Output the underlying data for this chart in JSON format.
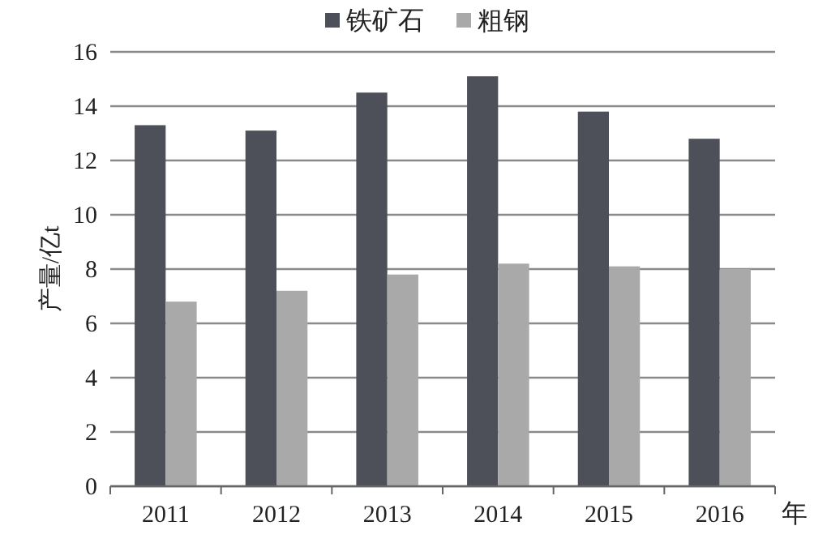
{
  "chart_data": {
    "type": "bar",
    "categories": [
      "2011",
      "2012",
      "2013",
      "2014",
      "2015",
      "2016"
    ],
    "series": [
      {
        "name": "铁矿石",
        "color": "#4d5058",
        "values": [
          13.3,
          13.1,
          14.5,
          15.1,
          13.8,
          12.8
        ]
      },
      {
        "name": "粗钢",
        "color": "#a9a9a9",
        "values": [
          6.8,
          7.2,
          7.8,
          8.2,
          8.1,
          8.0
        ]
      }
    ],
    "ylabel": "产量/亿t",
    "xlabel": "年",
    "ylim": [
      0,
      16
    ],
    "yticks": [
      0,
      2,
      4,
      6,
      8,
      10,
      12,
      14,
      16
    ],
    "grid": "y",
    "legend": "top"
  }
}
